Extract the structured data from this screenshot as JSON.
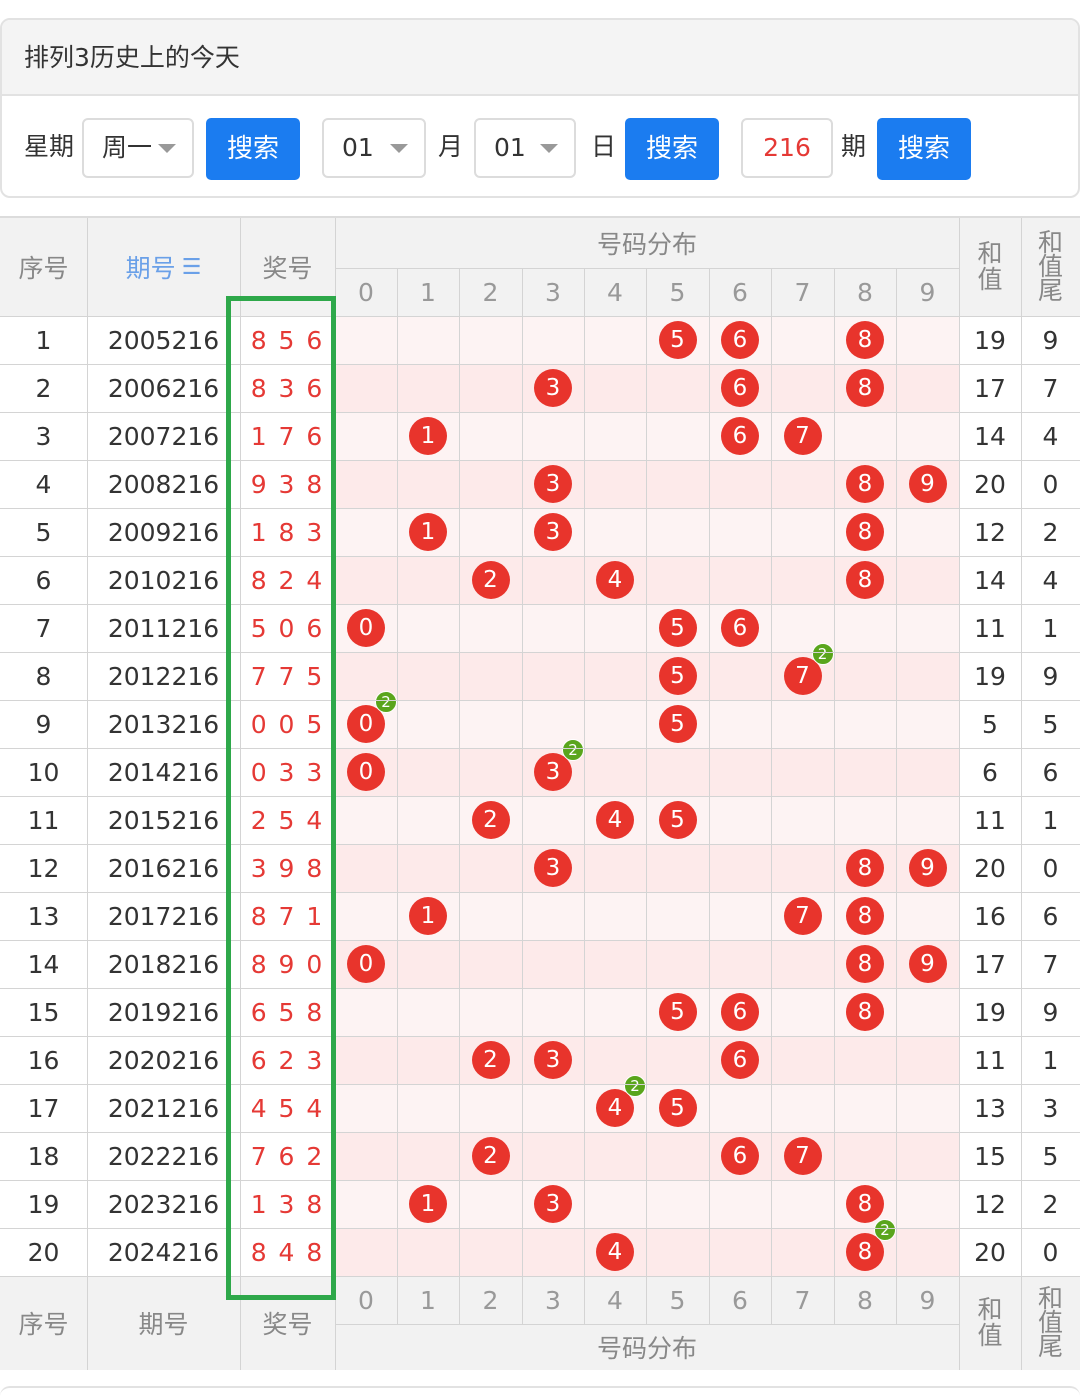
{
  "panel": {
    "title": "排列3历史上的今天",
    "weekday_label": "星期",
    "weekday_value": "周一",
    "search_label": "搜索",
    "month_value": "01",
    "month_label": "月",
    "day_value": "01",
    "day_label": "日",
    "period_value": "216",
    "period_label": "期"
  },
  "table": {
    "headers": {
      "index": "序号",
      "period": "期号",
      "sort_icon": "sort-icon",
      "prize": "奖号",
      "distribution": "号码分布",
      "sum": "和值",
      "sum_tail": "和值尾"
    },
    "digits": [
      "0",
      "1",
      "2",
      "3",
      "4",
      "5",
      "6",
      "7",
      "8",
      "9"
    ],
    "rows": [
      {
        "idx": "1",
        "period": "2005216",
        "prize": "8 5 6",
        "sum": "19",
        "tail": "9"
      },
      {
        "idx": "2",
        "period": "2006216",
        "prize": "8 3 6",
        "sum": "17",
        "tail": "7"
      },
      {
        "idx": "3",
        "period": "2007216",
        "prize": "1 7 6",
        "sum": "14",
        "tail": "4"
      },
      {
        "idx": "4",
        "period": "2008216",
        "prize": "9 3 8",
        "sum": "20",
        "tail": "0"
      },
      {
        "idx": "5",
        "period": "2009216",
        "prize": "1 8 3",
        "sum": "12",
        "tail": "2"
      },
      {
        "idx": "6",
        "period": "2010216",
        "prize": "8 2 4",
        "sum": "14",
        "tail": "4"
      },
      {
        "idx": "7",
        "period": "2011216",
        "prize": "5 0 6",
        "sum": "11",
        "tail": "1"
      },
      {
        "idx": "8",
        "period": "2012216",
        "prize": "7 7 5",
        "sum": "19",
        "tail": "9"
      },
      {
        "idx": "9",
        "period": "2013216",
        "prize": "0 0 5",
        "sum": "5",
        "tail": "5"
      },
      {
        "idx": "10",
        "period": "2014216",
        "prize": "0 3 3",
        "sum": "6",
        "tail": "6"
      },
      {
        "idx": "11",
        "period": "2015216",
        "prize": "2 5 4",
        "sum": "11",
        "tail": "1"
      },
      {
        "idx": "12",
        "period": "2016216",
        "prize": "3 9 8",
        "sum": "20",
        "tail": "0"
      },
      {
        "idx": "13",
        "period": "2017216",
        "prize": "8 7 1",
        "sum": "16",
        "tail": "6"
      },
      {
        "idx": "14",
        "period": "2018216",
        "prize": "8 9 0",
        "sum": "17",
        "tail": "7"
      },
      {
        "idx": "15",
        "period": "2019216",
        "prize": "6 5 8",
        "sum": "19",
        "tail": "9"
      },
      {
        "idx": "16",
        "period": "2020216",
        "prize": "6 2 3",
        "sum": "11",
        "tail": "1"
      },
      {
        "idx": "17",
        "period": "2021216",
        "prize": "4 5 4",
        "sum": "13",
        "tail": "3"
      },
      {
        "idx": "18",
        "period": "2022216",
        "prize": "7 6 2",
        "sum": "15",
        "tail": "5"
      },
      {
        "idx": "19",
        "period": "2023216",
        "prize": "1 3 8",
        "sum": "12",
        "tail": "2"
      },
      {
        "idx": "20",
        "period": "2024216",
        "prize": "8 4 8",
        "sum": "20",
        "tail": "0"
      }
    ],
    "repeat_badge": "2"
  },
  "colors": {
    "ball": "#e8342c",
    "repeat_badge": "#5aa51c",
    "button": "#1b7cf0",
    "highlight_box": "#2ea84a",
    "dist_even_bg": "#fdf3f3",
    "dist_odd_bg": "#fdeaea"
  }
}
